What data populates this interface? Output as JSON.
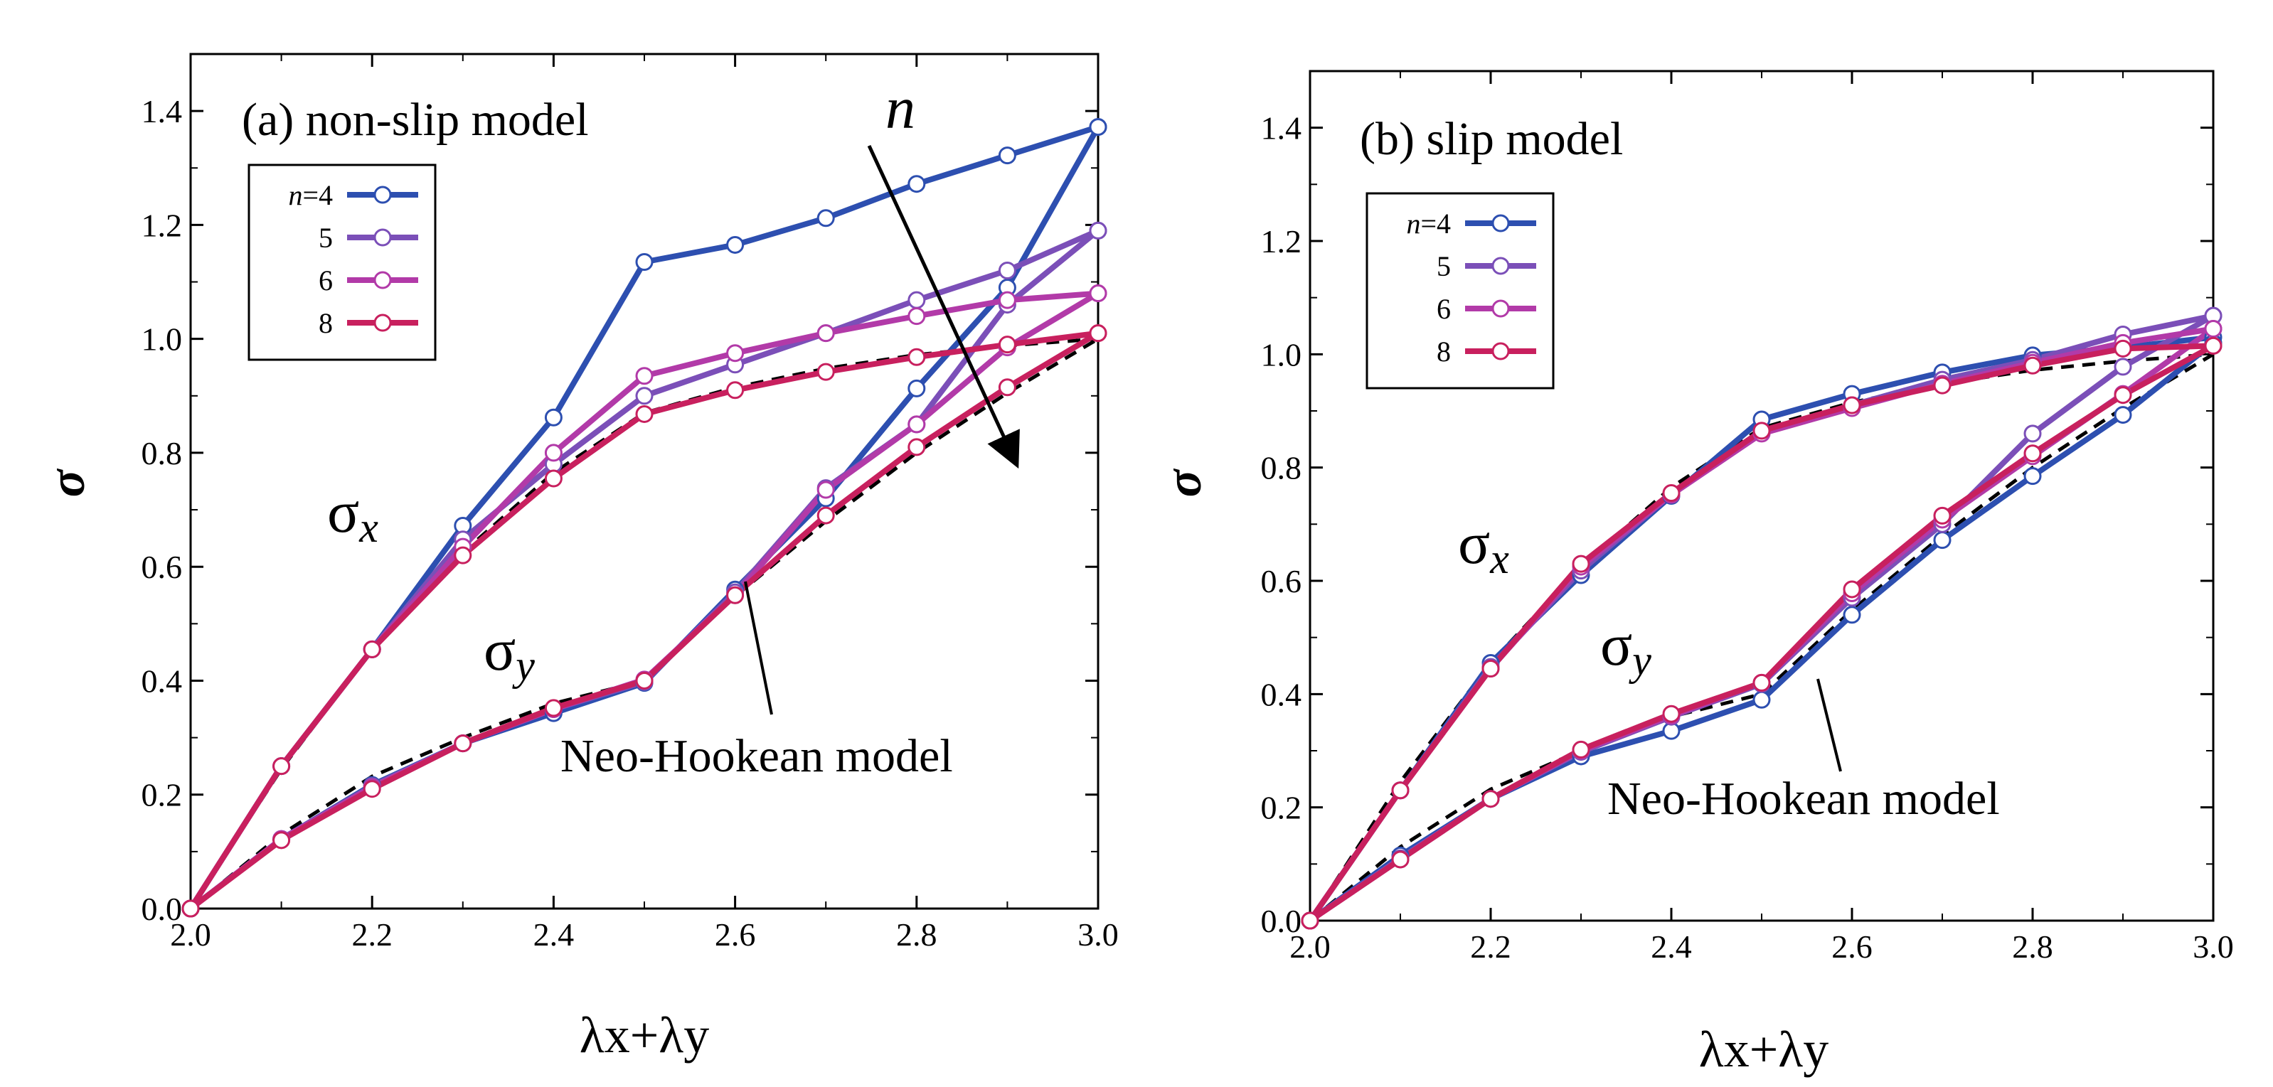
{
  "figure": {
    "panels": [
      "(a) non-slip model",
      "(b) slip model"
    ]
  },
  "chart_data": [
    {
      "type": "line",
      "title": "(a) non-slip model",
      "xlabel": "λx+λy",
      "ylabel": "σ",
      "xlim": [
        2.0,
        3.0
      ],
      "ylim": [
        0.0,
        1.5
      ],
      "xticks": [
        "2.0",
        "2.2",
        "2.4",
        "2.6",
        "2.8",
        "3.0"
      ],
      "yticks": [
        "0.0",
        "0.2",
        "0.4",
        "0.6",
        "0.8",
        "1.0",
        "1.2",
        "1.4"
      ],
      "legend_position": "upper-left",
      "legend_prefix": "n=",
      "annotations": {
        "sigma_x": "σx",
        "sigma_y": "σy",
        "neo_label": "Neo-Hookean model",
        "arrow_label": "n"
      },
      "x": [
        2.0,
        2.1,
        2.2,
        2.3,
        2.4,
        2.5,
        2.6,
        2.7,
        2.8,
        2.9,
        3.0
      ],
      "series": [
        {
          "name": "4",
          "color": "#2d4fb0",
          "sigma_x": [
            0.0,
            0.25,
            0.455,
            0.672,
            0.862,
            1.135,
            1.165,
            1.212,
            1.272,
            1.322,
            1.372
          ],
          "sigma_y": [
            0.0,
            0.122,
            0.217,
            0.29,
            0.343,
            0.396,
            0.56,
            0.72,
            0.913,
            1.09,
            1.372
          ]
        },
        {
          "name": "5",
          "color": "#7b4fb8",
          "sigma_x": [
            0.0,
            0.25,
            0.455,
            0.648,
            0.78,
            0.9,
            0.955,
            1.01,
            1.068,
            1.12,
            1.19
          ],
          "sigma_y": [
            0.0,
            0.122,
            0.215,
            0.29,
            0.35,
            0.398,
            0.555,
            0.738,
            0.85,
            1.06,
            1.19
          ]
        },
        {
          "name": "6",
          "color": "#b23aa8",
          "sigma_x": [
            0.0,
            0.25,
            0.455,
            0.635,
            0.8,
            0.935,
            0.975,
            1.01,
            1.04,
            1.068,
            1.08
          ],
          "sigma_y": [
            0.0,
            0.122,
            0.213,
            0.29,
            0.35,
            0.402,
            0.55,
            0.735,
            0.85,
            0.985,
            1.08
          ]
        },
        {
          "name": "8",
          "color": "#c8205e",
          "sigma_x": [
            0.0,
            0.25,
            0.455,
            0.62,
            0.755,
            0.868,
            0.91,
            0.942,
            0.968,
            0.99,
            1.01
          ],
          "sigma_y": [
            0.0,
            0.12,
            0.21,
            0.29,
            0.352,
            0.4,
            0.55,
            0.69,
            0.81,
            0.915,
            1.01
          ]
        }
      ],
      "neo_hookean": {
        "x": [
          2.0,
          2.1,
          2.2,
          2.3,
          2.4,
          2.5,
          2.6,
          2.7,
          2.8,
          2.9,
          3.0
        ],
        "sigma_x": [
          0.0,
          0.245,
          0.455,
          0.625,
          0.765,
          0.87,
          0.915,
          0.948,
          0.972,
          0.988,
          1.0
        ],
        "sigma_y": [
          0.0,
          0.13,
          0.232,
          0.3,
          0.36,
          0.4,
          0.548,
          0.68,
          0.8,
          0.905,
          1.0
        ]
      }
    },
    {
      "type": "line",
      "title": "(b) slip model",
      "xlabel": "λx+λy",
      "ylabel": "σ",
      "xlim": [
        2.0,
        3.0
      ],
      "ylim": [
        0.0,
        1.5
      ],
      "xticks": [
        "2.0",
        "2.2",
        "2.4",
        "2.6",
        "2.8",
        "3.0"
      ],
      "yticks": [
        "0.0",
        "0.2",
        "0.4",
        "0.6",
        "0.8",
        "1.0",
        "1.2",
        "1.4"
      ],
      "legend_position": "upper-left",
      "legend_prefix": "n=",
      "annotations": {
        "sigma_x": "σx",
        "sigma_y": "σy",
        "neo_label": "Neo-Hookean model"
      },
      "x": [
        2.0,
        2.1,
        2.2,
        2.3,
        2.4,
        2.5,
        2.6,
        2.7,
        2.8,
        2.9,
        3.0
      ],
      "series": [
        {
          "name": "4",
          "color": "#2d4fb0",
          "sigma_x": [
            0.0,
            0.23,
            0.455,
            0.61,
            0.75,
            0.885,
            0.93,
            0.968,
            0.998,
            1.012,
            1.03
          ],
          "sigma_y": [
            0.0,
            0.115,
            0.215,
            0.29,
            0.335,
            0.39,
            0.54,
            0.672,
            0.785,
            0.893,
            1.02
          ]
        },
        {
          "name": "5",
          "color": "#7b4fb8",
          "sigma_x": [
            0.0,
            0.23,
            0.448,
            0.618,
            0.753,
            0.862,
            0.91,
            0.955,
            0.99,
            1.035,
            1.068
          ],
          "sigma_y": [
            0.0,
            0.11,
            0.215,
            0.298,
            0.36,
            0.418,
            0.57,
            0.7,
            0.86,
            0.978,
            1.068
          ]
        },
        {
          "name": "6",
          "color": "#b23aa8",
          "sigma_x": [
            0.0,
            0.23,
            0.445,
            0.625,
            0.752,
            0.86,
            0.905,
            0.948,
            0.985,
            1.02,
            1.045
          ],
          "sigma_y": [
            0.0,
            0.108,
            0.215,
            0.3,
            0.362,
            0.42,
            0.578,
            0.708,
            0.82,
            0.93,
            1.045
          ]
        },
        {
          "name": "8",
          "color": "#c8205e",
          "sigma_x": [
            0.0,
            0.23,
            0.445,
            0.63,
            0.755,
            0.865,
            0.91,
            0.945,
            0.98,
            1.01,
            1.015
          ],
          "sigma_y": [
            0.0,
            0.108,
            0.215,
            0.302,
            0.365,
            0.42,
            0.585,
            0.715,
            0.825,
            0.928,
            1.015
          ]
        }
      ],
      "neo_hookean": {
        "x": [
          2.0,
          2.1,
          2.2,
          2.3,
          2.4,
          2.5,
          2.6,
          2.7,
          2.8,
          2.9,
          3.0
        ],
        "sigma_x": [
          0.0,
          0.245,
          0.455,
          0.625,
          0.765,
          0.87,
          0.915,
          0.948,
          0.972,
          0.988,
          1.0
        ],
        "sigma_y": [
          0.0,
          0.13,
          0.232,
          0.3,
          0.36,
          0.4,
          0.548,
          0.68,
          0.8,
          0.905,
          1.0
        ]
      }
    }
  ]
}
